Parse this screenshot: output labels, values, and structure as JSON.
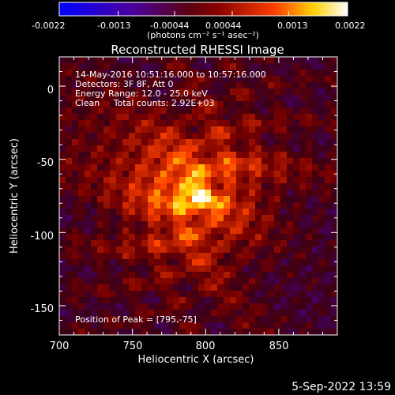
{
  "colorbar": {
    "ticks": [
      "-0.0022",
      "-0.0013",
      "-0.00044",
      "0.00044",
      "0.0013",
      "0.0022"
    ],
    "units": "(photons cm⁻² s⁻¹ asec⁻²)"
  },
  "title": "Reconstructed RHESSI Image",
  "annotations": {
    "line1": "14-May-2016 10:51:16.000 to 10:57:16.000",
    "line2": "Detectors: 3F 8F, Att 0",
    "line3": "Energy Range: 12.0 - 25.0 keV",
    "line4": "Clean     Total counts: 2.92E+03",
    "peak": "Position of Peak = [795,-75]"
  },
  "footer": {
    "timestamp": "5-Sep-2022 13:59"
  },
  "chart_data": {
    "type": "heatmap",
    "title": "Reconstructed RHESSI Image",
    "xlabel": "Heliocentric X (arcsec)",
    "ylabel": "Heliocentric Y (arcsec)",
    "xlim": [
      700,
      890
    ],
    "ylim": [
      -170,
      20
    ],
    "xticks": [
      700,
      750,
      800,
      850
    ],
    "yticks": [
      0,
      -50,
      -100,
      -150
    ],
    "colorbar_range": [
      -0.0022,
      0.0022
    ],
    "peak": [
      795,
      -75
    ],
    "units": "photons cm^-2 s^-1 asec^-2",
    "colormap": "rainbow-like (blue→purple→red→yellow→white)"
  }
}
